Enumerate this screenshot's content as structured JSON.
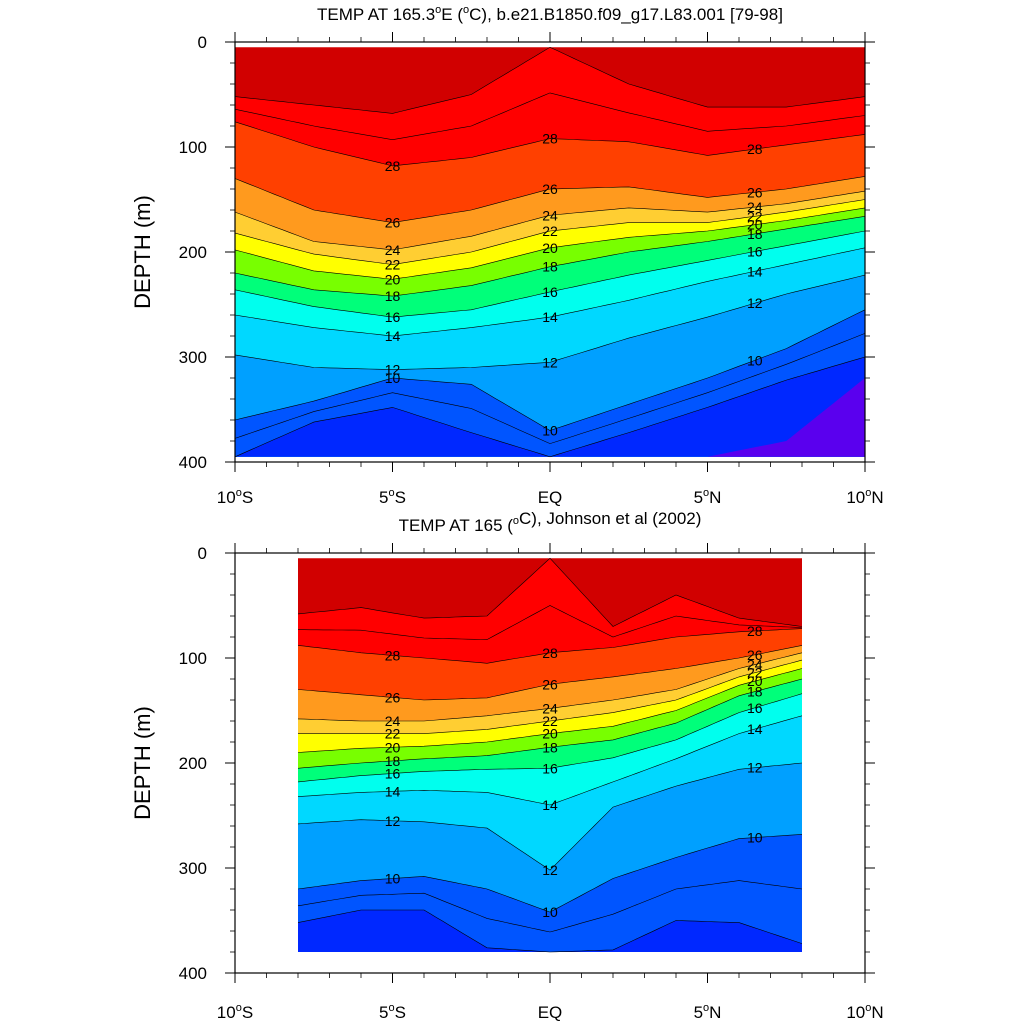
{
  "chart_data": [
    {
      "type": "contour",
      "title": "TEMP AT 165.3°E (°C), b.e21.B1850.f09_g17.L83.001 [79-98]",
      "title_parts": {
        "pre": "TEMP AT 165.3",
        "deg1": "o",
        "mid": "E (",
        "deg2": "o",
        "post": "C), b.e21.B1850.f09_g17.L83.001 [79-98]"
      },
      "ylabel": "DEPTH (m)",
      "xlim": [
        -10,
        10
      ],
      "ylim": [
        400,
        0
      ],
      "x_data_range": [
        -10,
        10
      ],
      "y_data_range": [
        5,
        395
      ],
      "xticks": [
        -10,
        -5,
        0,
        5,
        10
      ],
      "xtick_labels": [
        "10°S",
        "5°S",
        "EQ",
        "5°N",
        "10°N"
      ],
      "yticks": [
        0,
        100,
        200,
        300,
        400
      ],
      "ytick_labels": [
        "0",
        "100",
        "200",
        "300",
        "400"
      ],
      "contour_levels": [
        8,
        9,
        10,
        11,
        12,
        13,
        14,
        15,
        16,
        17,
        18,
        19,
        20,
        21,
        22,
        23,
        24,
        25,
        26,
        27,
        28,
        29
      ],
      "contour_labels": [
        28,
        26,
        24,
        22,
        20,
        18,
        16,
        14,
        12,
        10
      ],
      "isotherm_depths": {
        "x": [
          -10,
          -7.5,
          -5,
          -2.5,
          0,
          2.5,
          5,
          7.5,
          10
        ],
        "29": [
          52,
          60,
          68,
          50,
          5,
          40,
          62,
          62,
          52
        ],
        "28": [
          76,
          100,
          118,
          110,
          92,
          95,
          108,
          98,
          88
        ],
        "26": [
          130,
          160,
          172,
          160,
          140,
          138,
          148,
          140,
          128
        ],
        "24": [
          162,
          190,
          198,
          185,
          165,
          158,
          162,
          154,
          142
        ],
        "22": [
          182,
          202,
          212,
          200,
          180,
          172,
          172,
          162,
          150
        ],
        "20": [
          198,
          218,
          226,
          215,
          196,
          186,
          180,
          170,
          158
        ],
        "18": [
          220,
          236,
          242,
          232,
          214,
          200,
          190,
          178,
          166
        ],
        "16": [
          236,
          252,
          262,
          255,
          238,
          222,
          208,
          194,
          180
        ],
        "14": [
          260,
          272,
          280,
          272,
          262,
          246,
          228,
          212,
          196
        ],
        "12": [
          298,
          310,
          312,
          310,
          305,
          282,
          262,
          240,
          222
        ],
        "10": [
          360,
          342,
          320,
          326,
          370,
          345,
          320,
          292,
          255
        ],
        "9": [
          395,
          362,
          348,
          372,
          395,
          372,
          348,
          322,
          300
        ],
        "8": [
          395,
          395,
          395,
          395,
          395,
          395,
          395,
          380,
          320
        ]
      }
    },
    {
      "type": "contour",
      "title": "TEMP AT 165 (°C), Johnson et al (2002)",
      "title_parts": {
        "pre": "TEMP AT 165 (",
        "deg1": "o",
        "mid": "",
        "deg2": "",
        "post": "C), Johnson et al (2002)"
      },
      "ylabel": "DEPTH (m)",
      "xlim": [
        -10,
        10
      ],
      "ylim": [
        400,
        0
      ],
      "x_data_range": [
        -8,
        8
      ],
      "y_data_range": [
        5,
        380
      ],
      "xticks": [
        -10,
        -5,
        0,
        5,
        10
      ],
      "xtick_labels": [
        "10°S",
        "5°S",
        "EQ",
        "5°N",
        "10°N"
      ],
      "yticks": [
        0,
        100,
        200,
        300,
        400
      ],
      "ytick_labels": [
        "0",
        "100",
        "200",
        "300",
        "400"
      ],
      "contour_levels": [
        8,
        9,
        10,
        11,
        12,
        13,
        14,
        15,
        16,
        17,
        18,
        19,
        20,
        21,
        22,
        23,
        24,
        25,
        26,
        27,
        28,
        29
      ],
      "contour_labels": [
        28,
        26,
        24,
        22,
        20,
        18,
        16,
        14,
        12,
        10
      ],
      "isotherm_depths": {
        "x": [
          -8,
          -6,
          -4,
          -2,
          0,
          2,
          4,
          6,
          8
        ],
        "29": [
          58,
          52,
          62,
          60,
          5,
          70,
          40,
          62,
          70
        ],
        "28": [
          88,
          95,
          100,
          105,
          95,
          90,
          80,
          75,
          72
        ],
        "26": [
          130,
          135,
          140,
          138,
          125,
          118,
          110,
          100,
          88
        ],
        "24": [
          158,
          160,
          160,
          155,
          148,
          140,
          130,
          110,
          95
        ],
        "22": [
          172,
          172,
          172,
          168,
          160,
          152,
          140,
          118,
          102
        ],
        "20": [
          190,
          186,
          184,
          180,
          172,
          165,
          150,
          126,
          110
        ],
        "18": [
          205,
          200,
          196,
          193,
          185,
          178,
          162,
          136,
          120
        ],
        "16": [
          218,
          212,
          208,
          206,
          205,
          195,
          178,
          152,
          134
        ],
        "14": [
          232,
          228,
          226,
          228,
          240,
          218,
          196,
          172,
          155
        ],
        "12": [
          258,
          254,
          256,
          262,
          302,
          242,
          222,
          206,
          200
        ],
        "10": [
          320,
          312,
          308,
          320,
          342,
          310,
          290,
          272,
          268
        ],
        "9": [
          352,
          340,
          340,
          376,
          380,
          378,
          350,
          352,
          372
        ],
        "8": [
          380,
          380,
          380,
          380,
          380,
          380,
          380,
          380,
          380
        ]
      }
    }
  ]
}
